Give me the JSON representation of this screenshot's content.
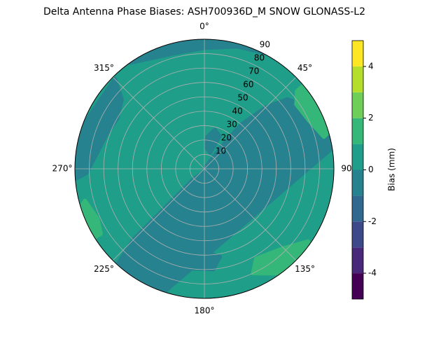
{
  "chart_data": {
    "type": "polar_contour",
    "title": "Delta Antenna Phase Biases: ASH700936D_M    SNOW GLONASS-L2",
    "theta_labels": [
      "0°",
      "45°",
      "90",
      "135°",
      "180°",
      "225°",
      "270°",
      "315°"
    ],
    "ylim": [
      0,
      90
    ],
    "yticks": [
      10,
      20,
      30,
      40,
      50,
      60,
      70,
      80,
      90
    ],
    "colorbar_label": "Bias (mm)",
    "clim": [
      -5,
      5
    ],
    "cticks": [
      -4,
      -2,
      0,
      2,
      4
    ],
    "levels": [
      -5,
      -4,
      -3,
      -2,
      -1,
      0,
      1,
      2,
      3,
      4,
      5
    ],
    "colors": [
      "#440154",
      "#482878",
      "#3e4989",
      "#31688e",
      "#26828e",
      "#1f9e89",
      "#35b779",
      "#6ece58",
      "#b5de2b",
      "#fde725"
    ],
    "regions": [
      0,
      -1,
      -1,
      -1,
      -1,
      -1,
      1,
      1,
      1
    ],
    "grid": true
  }
}
